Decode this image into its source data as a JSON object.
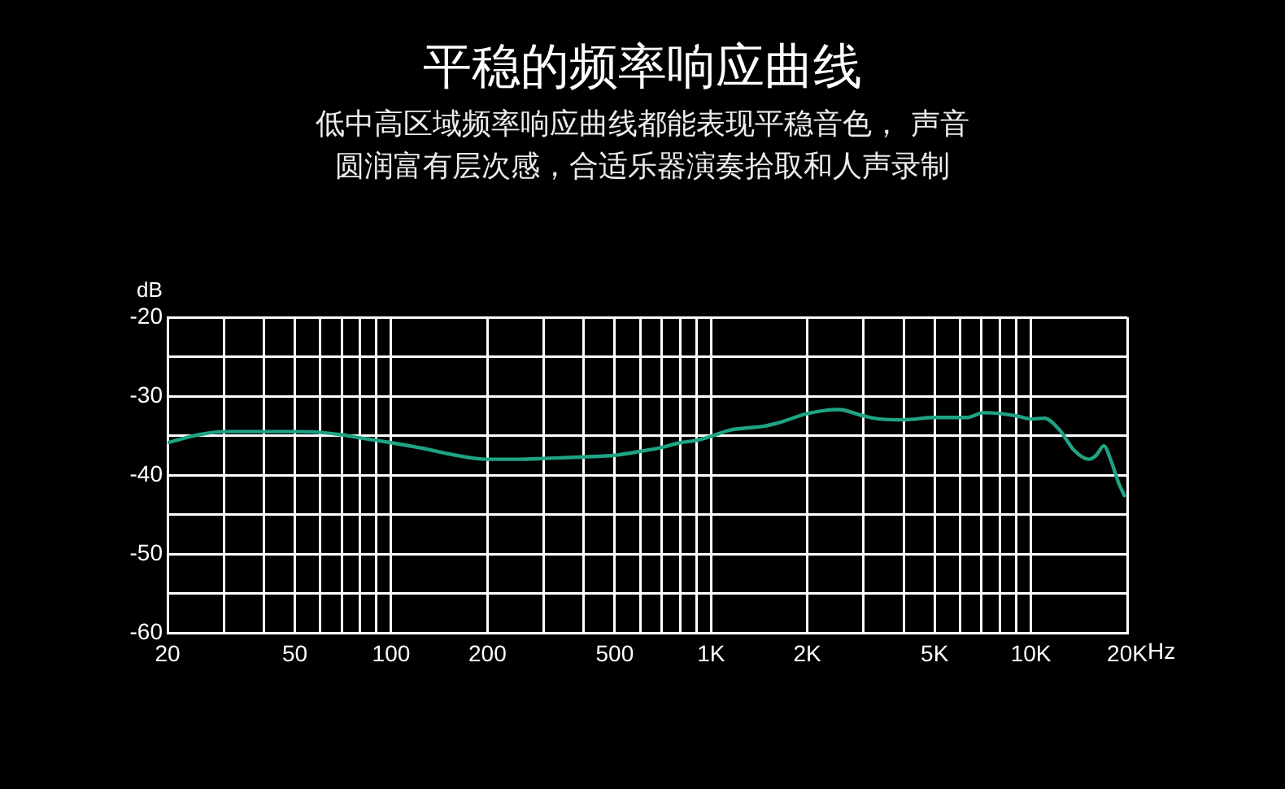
{
  "chart_data": {
    "type": "line",
    "title": "平稳的频率响应曲线",
    "subtitle": "低中高区域频率响应曲线都能表现平稳音色， 声音圆润富有层次感，合适乐器演奏拾取和人声录制",
    "xlabel": "Hz",
    "ylabel": "dB",
    "x": [
      20,
      25,
      30,
      40,
      50,
      60,
      70,
      80,
      90,
      100,
      125,
      155,
      200,
      250,
      300,
      400,
      500,
      600,
      700,
      800,
      900,
      1000,
      1150,
      1330,
      1470,
      1680,
      2000,
      2500,
      3000,
      3380,
      4000,
      5000,
      5520,
      6340,
      7100,
      8000,
      9000,
      10000,
      11000,
      12300,
      13600,
      15200,
      16000,
      16900,
      17800,
      18800,
      19600
    ],
    "series": [
      {
        "color": "#1fa383",
        "values": [
          -35.9,
          -34.9,
          -34.5,
          -34.5,
          -34.5,
          -34.6,
          -34.9,
          -35.3,
          -35.6,
          -35.9,
          -36.6,
          -37.4,
          -38.0,
          -38.0,
          -37.9,
          -37.7,
          -37.5,
          -37.0,
          -36.5,
          -35.9,
          -35.6,
          -35.1,
          -34.3,
          -34.0,
          -33.8,
          -33.2,
          -32.2,
          -31.7,
          -32.5,
          -32.9,
          -33.0,
          -32.7,
          -32.7,
          -32.7,
          -32.1,
          -32.2,
          -32.5,
          -32.9,
          -32.8,
          -34.3,
          -36.8,
          -38.0,
          -37.5,
          -36.3,
          -38.2,
          -41.0,
          -42.6
        ]
      }
    ],
    "xlim": [
      20,
      20000
    ],
    "ylim": [
      -60,
      -20
    ],
    "xticks": [
      20,
      {
        "value": 30,
        "label": null
      },
      {
        "value": 40,
        "label": null
      },
      50,
      {
        "value": 60,
        "label": null
      },
      {
        "value": 70,
        "label": null
      },
      {
        "value": 80,
        "label": null
      },
      {
        "value": 90,
        "label": null
      },
      100,
      200,
      {
        "value": 300,
        "label": null
      },
      {
        "value": 400,
        "label": null
      },
      500,
      {
        "value": 600,
        "label": null
      },
      {
        "value": 700,
        "label": null
      },
      {
        "value": 800,
        "label": null
      },
      {
        "value": 900,
        "label": null
      },
      {
        "value": 1000,
        "label": "1K"
      },
      {
        "value": 2000,
        "label": "2K"
      },
      {
        "value": 3000,
        "label": null
      },
      {
        "value": 4000,
        "label": null
      },
      {
        "value": 5000,
        "label": "5K"
      },
      {
        "value": 6000,
        "label": null
      },
      {
        "value": 7000,
        "label": null
      },
      {
        "value": 8000,
        "label": null
      },
      {
        "value": 9000,
        "label": null
      },
      {
        "value": 10000,
        "label": "10K"
      },
      {
        "value": 20000,
        "label": "20K"
      }
    ],
    "yticks": [
      -60,
      {
        "value": -55,
        "label": null
      },
      -50,
      {
        "value": -45,
        "label": null
      },
      -40,
      {
        "value": -35,
        "label": null
      },
      -30,
      {
        "value": -25,
        "label": null
      },
      -20
    ],
    "log": "x",
    "grid": true
  }
}
